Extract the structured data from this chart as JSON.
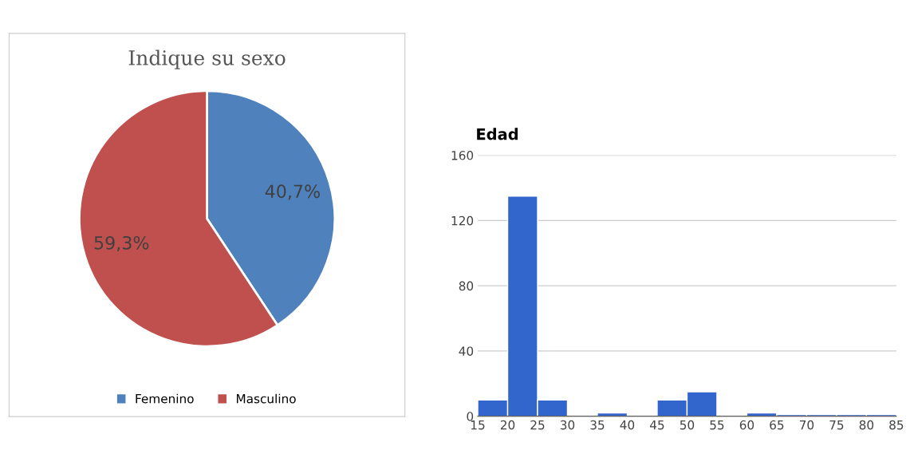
{
  "chart_data": [
    {
      "type": "pie",
      "title": "Indique su sexo",
      "categories": [
        "Femenino",
        "Masculino"
      ],
      "values": [
        40.7,
        59.3
      ],
      "colors": [
        "#4f81bd",
        "#c0504d"
      ],
      "value_labels": [
        "40,7%",
        "59,3%"
      ],
      "legend": "bottom"
    },
    {
      "type": "histogram",
      "title": "Edad",
      "bins": [
        15,
        20,
        25,
        30,
        35,
        40,
        45,
        50,
        55,
        60,
        65,
        70,
        75,
        80,
        85
      ],
      "values": [
        10,
        135,
        10,
        0,
        2,
        0,
        10,
        15,
        0,
        2,
        1,
        1,
        1,
        1
      ],
      "color": "#3366cc",
      "xlim": [
        15,
        85
      ],
      "xticks": [
        15,
        20,
        25,
        30,
        35,
        40,
        45,
        50,
        55,
        60,
        65,
        70,
        75,
        80,
        85
      ],
      "ylim": [
        0,
        160
      ],
      "yticks": [
        0,
        40,
        80,
        120,
        160
      ],
      "grid": "y"
    }
  ]
}
